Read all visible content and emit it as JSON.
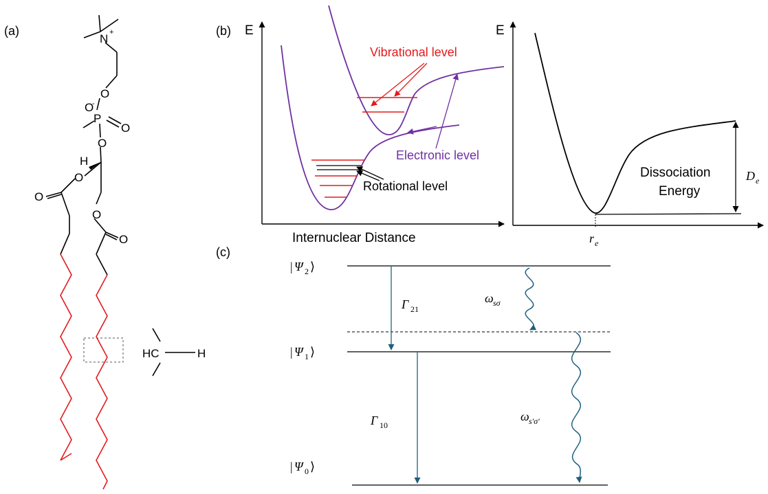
{
  "panels": {
    "a_label": "(a)",
    "b_label": "(b)",
    "c_label": "(c)"
  },
  "molecule": {
    "nitrogen": "N",
    "charge_plus": "+",
    "oxygen": "O",
    "charge_minus": "-",
    "phosphorus": "P",
    "hydrogen": "H",
    "ch_group": "HC",
    "ch_hydrogen": "H"
  },
  "potential_plot": {
    "y_axis_label": "E",
    "x_axis_label": "Internuclear Distance",
    "vibrational_label": "Vibrational level",
    "electronic_label": "Electronic level",
    "rotational_label": "Rotational level"
  },
  "dissociation_plot": {
    "y_axis_label": "E",
    "energy_label_line1": "Dissociation",
    "energy_label_line2": "Energy",
    "de_symbol": "D",
    "de_sub": "e",
    "re_symbol": "r",
    "re_sub": "e"
  },
  "levels": {
    "psi2_symbol": "Ψ",
    "psi2_sub": "2",
    "psi1_symbol": "Ψ",
    "psi1_sub": "1",
    "psi0_symbol": "Ψ",
    "psi0_sub": "0",
    "gamma21_symbol": "Γ",
    "gamma21_sub": "21",
    "gamma10_symbol": "Γ",
    "gamma10_sub": "10",
    "omega1_symbol": "ω",
    "omega1_sub": "sσ",
    "omega2_symbol": "ω",
    "omega2_sub": "s′σ′"
  },
  "colors": {
    "red": "#e31a1c",
    "purple": "#7030a0",
    "teal": "#1f5f7f",
    "black": "#000000"
  }
}
